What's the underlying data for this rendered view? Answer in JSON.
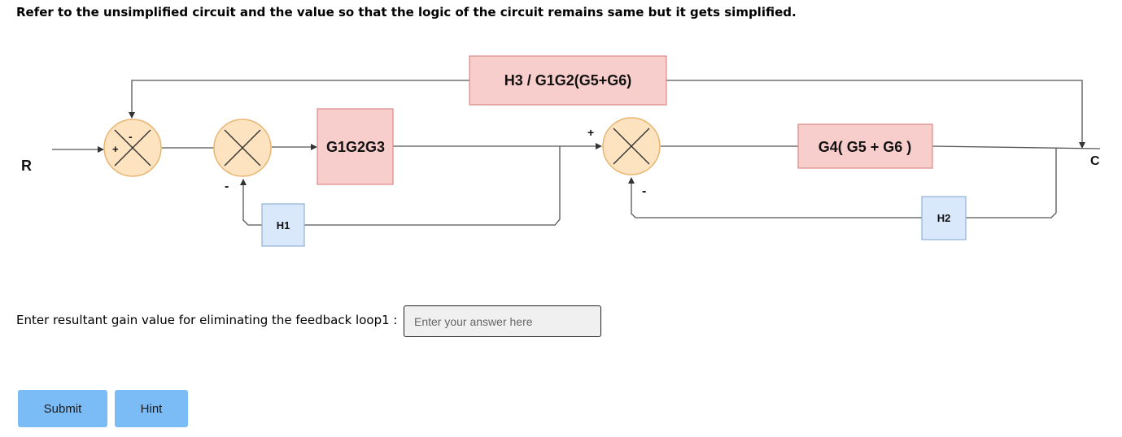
{
  "instruction": "Refer to the unsimplified circuit and the value so that the logic of the circuit remains same but it gets simplified.",
  "diagram": {
    "input_label": "R",
    "output_label": "C",
    "blocks": {
      "feedforward": "H3 / G1G2(G5+G6)",
      "g1g2g3": "G1G2G3",
      "g4": "G4( G5 + G6 )",
      "h1": "H1",
      "h2": "H2"
    },
    "signs": {
      "sum1_left": "+",
      "sum1_top": "-",
      "sum2_bottom": "-",
      "sum3_top": "+",
      "sum3_bottom": "-"
    }
  },
  "question": {
    "label": "Enter resultant gain value for eliminating the feedback loop1 :",
    "placeholder": "Enter your answer here",
    "value": ""
  },
  "buttons": {
    "submit": "Submit",
    "hint": "Hint"
  },
  "colors": {
    "block_red_fill": "#f8cecc",
    "block_blue_fill": "#dae8fc",
    "summer_fill": "#fde3c0",
    "button_fill": "#7bbcf7"
  }
}
